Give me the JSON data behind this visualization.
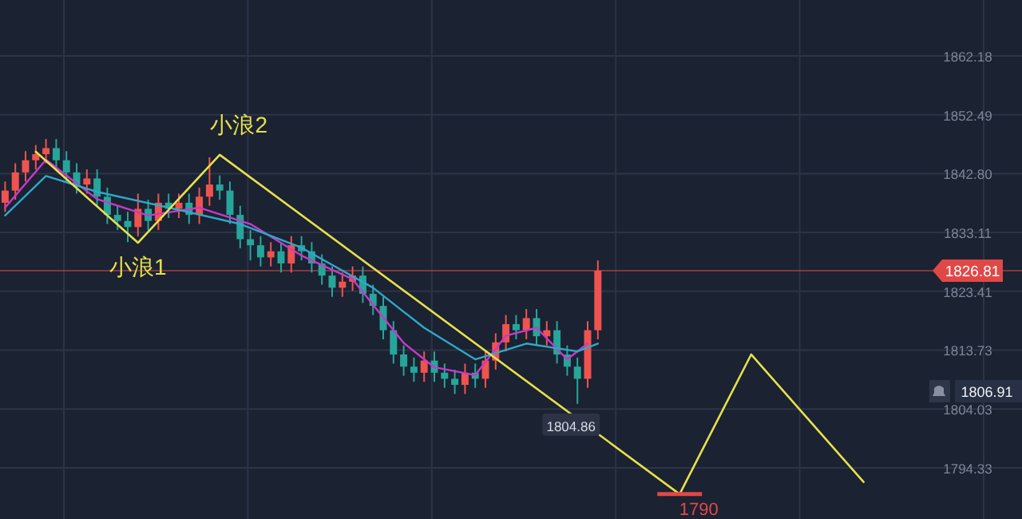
{
  "chart_data": {
    "type": "candlestick",
    "categories": [
      null,
      null,
      null,
      null,
      null,
      null,
      null,
      null,
      null,
      null,
      null,
      null,
      null,
      null,
      null,
      null,
      null,
      null,
      null,
      null,
      null,
      null,
      null,
      null,
      null,
      null,
      null,
      null,
      null,
      null,
      null,
      null,
      null,
      null,
      null,
      null,
      null,
      null,
      null,
      null,
      null,
      null,
      null,
      null,
      null,
      null,
      null,
      null,
      null,
      null,
      null,
      null,
      null,
      null,
      null,
      null,
      null,
      null,
      null,
      null,
      null,
      null,
      null,
      null,
      null,
      null,
      null,
      null,
      null,
      null,
      null,
      null,
      null,
      null,
      null,
      null,
      null,
      null,
      null,
      null,
      null,
      null,
      null,
      null,
      null,
      null,
      null,
      null,
      null,
      null,
      null,
      null,
      null,
      null,
      null,
      null,
      null,
      null,
      null,
      null
    ],
    "series": [
      {
        "type": "candlestick",
        "ohlc": [
          [
            1838,
            1841.5,
            1836.5,
            1840
          ],
          [
            1840,
            1844.5,
            1838.5,
            1843
          ],
          [
            1843,
            1846.5,
            1841.5,
            1845
          ],
          [
            1845,
            1847.5,
            1843.5,
            1846
          ],
          [
            1846,
            1848.5,
            1844.5,
            1847
          ],
          [
            1847,
            1848.5,
            1843.5,
            1845
          ],
          [
            1845,
            1846.5,
            1841.5,
            1843
          ],
          [
            1843,
            1844.5,
            1839.5,
            1841
          ],
          [
            1841,
            1843.5,
            1839.5,
            1842
          ],
          [
            1842,
            1843.5,
            1837.5,
            1839
          ],
          [
            1839,
            1840.5,
            1834.5,
            1836
          ],
          [
            1836,
            1837.5,
            1833.5,
            1835
          ],
          [
            1835,
            1836.5,
            1831.5,
            1834
          ],
          [
            1834,
            1839.5,
            1832.5,
            1837
          ],
          [
            1837,
            1838.5,
            1833.5,
            1835
          ],
          [
            1835,
            1839.5,
            1833.5,
            1838
          ],
          [
            1838,
            1839.5,
            1835.5,
            1837
          ],
          [
            1837,
            1839.5,
            1835.5,
            1838
          ],
          [
            1838,
            1839.5,
            1834.5,
            1836
          ],
          [
            1836,
            1840.5,
            1834.5,
            1839
          ],
          [
            1839,
            1845.5,
            1837.5,
            1841
          ],
          [
            1841,
            1842.5,
            1838.5,
            1840
          ],
          [
            1840,
            1841.5,
            1834.5,
            1836
          ],
          [
            1836,
            1837.5,
            1830.5,
            1832
          ],
          [
            1832,
            1833.5,
            1828.5,
            1831
          ],
          [
            1831,
            1832.5,
            1827.5,
            1829
          ],
          [
            1829,
            1831.5,
            1827.5,
            1830
          ],
          [
            1830,
            1831.5,
            1826.5,
            1828
          ],
          [
            1828,
            1832.5,
            1826.5,
            1831
          ],
          [
            1831,
            1832.5,
            1828.5,
            1830
          ],
          [
            1830,
            1831.5,
            1826.5,
            1828
          ],
          [
            1828,
            1829.5,
            1824.5,
            1826
          ],
          [
            1826,
            1827.5,
            1822.5,
            1824
          ],
          [
            1824,
            1826.5,
            1822.5,
            1825
          ],
          [
            1825,
            1827.5,
            1823.5,
            1826
          ],
          [
            1826,
            1827.5,
            1821.5,
            1823
          ],
          [
            1823,
            1824.5,
            1819.5,
            1821
          ],
          [
            1821,
            1822.5,
            1815.5,
            1817
          ],
          [
            1817,
            1818.5,
            1811.5,
            1813
          ],
          [
            1813,
            1814.5,
            1809.5,
            1811
          ],
          [
            1811,
            1812.5,
            1808.5,
            1810
          ],
          [
            1810,
            1813.5,
            1808.5,
            1812
          ],
          [
            1812,
            1813.5,
            1808.5,
            1810
          ],
          [
            1810,
            1811.5,
            1807.5,
            1809
          ],
          [
            1809,
            1810.5,
            1806.5,
            1808
          ],
          [
            1808,
            1811.5,
            1806.5,
            1810
          ],
          [
            1810,
            1811.5,
            1807.5,
            1809
          ],
          [
            1809,
            1813.5,
            1807.5,
            1812
          ],
          [
            1812,
            1816.5,
            1810.5,
            1815
          ],
          [
            1815,
            1819.5,
            1813.5,
            1818
          ],
          [
            1818,
            1819.5,
            1815.5,
            1817
          ],
          [
            1817,
            1820.5,
            1815.5,
            1819
          ],
          [
            1819,
            1820.5,
            1814.5,
            1816
          ],
          [
            1816,
            1818.5,
            1814.5,
            1817
          ],
          [
            1817,
            1818.5,
            1811.5,
            1813
          ],
          [
            1813,
            1814.5,
            1809.5,
            1811
          ],
          [
            1811,
            1812.5,
            1804.86,
            1809
          ],
          [
            1809,
            1818.5,
            1807.5,
            1817
          ],
          [
            1817,
            1828.5,
            1815.5,
            1826.81
          ],
          null,
          null,
          null,
          null,
          null,
          null,
          null,
          null,
          null,
          null,
          null,
          null,
          null,
          null,
          null,
          null,
          null,
          null,
          null,
          null,
          null,
          null,
          null,
          null,
          null,
          null,
          null,
          null,
          null,
          null,
          null,
          null,
          null,
          null,
          null,
          null,
          null,
          null,
          null,
          null,
          null
        ],
        "colors": [
          "#ef5350",
          "#ef5350",
          "#ef5350",
          "#ef5350",
          "#ef5350",
          "#26a69a",
          "#26a69a",
          "#26a69a",
          "#ef5350",
          "#26a69a",
          "#26a69a",
          "#26a69a",
          "#26a69a",
          "#ef5350",
          "#26a69a",
          "#ef5350",
          "#26a69a",
          "#ef5350",
          "#26a69a",
          "#ef5350",
          "#ef5350",
          "#26a69a",
          "#26a69a",
          "#26a69a",
          "#26a69a",
          "#26a69a",
          "#ef5350",
          "#26a69a",
          "#ef5350",
          "#26a69a",
          "#26a69a",
          "#26a69a",
          "#26a69a",
          "#ef5350",
          "#ef5350",
          "#26a69a",
          "#26a69a",
          "#26a69a",
          "#26a69a",
          "#26a69a",
          "#26a69a",
          "#ef5350",
          "#26a69a",
          "#26a69a",
          "#26a69a",
          "#ef5350",
          "#26a69a",
          "#ef5350",
          "#ef5350",
          "#ef5350",
          "#26a69a",
          "#ef5350",
          "#26a69a",
          "#ef5350",
          "#26a69a",
          "#26a69a",
          "#26a69a",
          "#ef5350",
          "#ef5350",
          null,
          null,
          null,
          null,
          null,
          null,
          null,
          null,
          null,
          null,
          null,
          null,
          null,
          null,
          null,
          null,
          null,
          null,
          null,
          null,
          null,
          null,
          null,
          null,
          null,
          null,
          null,
          null,
          null,
          null,
          null,
          null,
          null,
          null,
          null,
          null,
          null,
          null,
          null,
          null,
          null
        ]
      },
      {
        "type": "line",
        "color": "#c73ac9",
        "values": [
          1837.2,
          null,
          null,
          null,
          1845.1,
          null,
          null,
          null,
          null,
          1838.6,
          null,
          null,
          null,
          null,
          1835.9,
          null,
          null,
          null,
          null,
          1837.2,
          null,
          null,
          null,
          null,
          1834.5,
          null,
          null,
          null,
          null,
          1829.3,
          null,
          null,
          null,
          null,
          1825.4,
          null,
          null,
          null,
          null,
          1814.9,
          null,
          null,
          1810.9,
          null,
          null,
          null,
          1809.6,
          null,
          null,
          1816.1,
          null,
          null,
          1817.4,
          null,
          null,
          1812.2,
          null,
          1814.8,
          null,
          null,
          null,
          null,
          null,
          null,
          null,
          null,
          null,
          null,
          null,
          null,
          null,
          null,
          null,
          null,
          null,
          null,
          null,
          null,
          null,
          null,
          null,
          null,
          null,
          null,
          null,
          null,
          null,
          null,
          null,
          null,
          null,
          null,
          null,
          null,
          null,
          null,
          null,
          null,
          null,
          null
        ]
      },
      {
        "type": "line",
        "color": "#2fa8c8",
        "values": [
          1835.9,
          null,
          null,
          null,
          1842.4,
          null,
          null,
          null,
          null,
          1839.8,
          null,
          null,
          null,
          null,
          null,
          null,
          1837.2,
          null,
          null,
          null,
          null,
          null,
          null,
          1834.5,
          null,
          null,
          null,
          null,
          null,
          1830.6,
          null,
          null,
          null,
          null,
          null,
          null,
          1824.0,
          null,
          null,
          null,
          null,
          1817.4,
          null,
          null,
          null,
          null,
          1812.2,
          null,
          null,
          null,
          null,
          1814.8,
          null,
          null,
          null,
          null,
          1813.5,
          null,
          1814.8,
          null,
          null,
          null,
          null,
          null,
          null,
          null,
          null,
          null,
          null,
          null,
          null,
          null,
          null,
          null,
          null,
          null,
          null,
          null,
          null,
          null,
          null,
          null,
          null,
          null,
          null,
          null,
          null,
          null,
          null,
          null,
          null,
          null,
          null,
          null,
          null,
          null,
          null,
          null,
          null,
          null
        ]
      },
      {
        "type": "line",
        "color": "#e6e04c",
        "values": [
          null,
          null,
          null,
          1846.4,
          null,
          null,
          null,
          null,
          null,
          null,
          null,
          null,
          null,
          1831.4,
          null,
          null,
          null,
          null,
          null,
          null,
          null,
          1845.9,
          null,
          null,
          null,
          null,
          null,
          null,
          null,
          null,
          null,
          null,
          null,
          null,
          null,
          null,
          null,
          null,
          null,
          null,
          null,
          null,
          null,
          null,
          null,
          null,
          null,
          null,
          null,
          null,
          null,
          null,
          null,
          null,
          null,
          null,
          null,
          null,
          null,
          null,
          null,
          null,
          null,
          null,
          null,
          null,
          1790,
          null,
          null,
          null,
          null,
          null,
          null,
          1813.0,
          null,
          null,
          null,
          null,
          null,
          null,
          null,
          null,
          null,
          null,
          1792,
          null,
          null,
          null,
          null,
          null,
          null,
          null,
          null,
          null,
          null,
          null,
          null,
          null,
          null,
          null
        ],
        "value_labels": [
          null,
          null,
          null,
          null,
          null,
          null,
          null,
          null,
          null,
          null,
          null,
          null,
          null,
          "小浪1",
          null,
          null,
          null,
          null,
          null,
          null,
          null,
          "小浪2",
          null,
          null,
          null,
          null,
          null,
          null,
          null,
          null,
          null,
          null,
          null,
          null,
          null,
          null,
          null,
          null,
          null,
          null,
          null,
          null,
          null,
          null,
          null,
          null,
          null,
          null,
          null,
          null,
          null,
          null,
          null,
          null,
          null,
          null,
          null,
          null,
          null,
          null,
          null,
          null,
          null,
          null,
          null,
          null,
          null,
          null,
          null,
          null,
          null,
          null,
          null,
          null,
          null,
          null,
          null,
          null,
          null,
          null,
          null,
          null,
          null,
          null,
          null,
          null,
          null,
          null,
          null,
          null,
          null,
          null,
          null,
          null,
          null,
          null,
          null,
          null,
          null,
          null
        ]
      }
    ],
    "ylim": [
      1785.9,
      1871.4
    ],
    "yticks": [
      1794.33,
      1804.03,
      1813.73,
      1823.41,
      1833.11,
      {
        "value": 1842.8,
        "label": "1842.80"
      },
      1852.49,
      1862.18
    ],
    "grid": true,
    "tick_labels": "y",
    "ref_lines": [
      {
        "axis": "y",
        "value": 1826.81,
        "label": "1826.81",
        "color": "#e04848"
      }
    ],
    "annotations": [
      "1806.91",
      {
        "text": "1804.86",
        "y": 1804.86
      },
      "1790"
    ]
  }
}
